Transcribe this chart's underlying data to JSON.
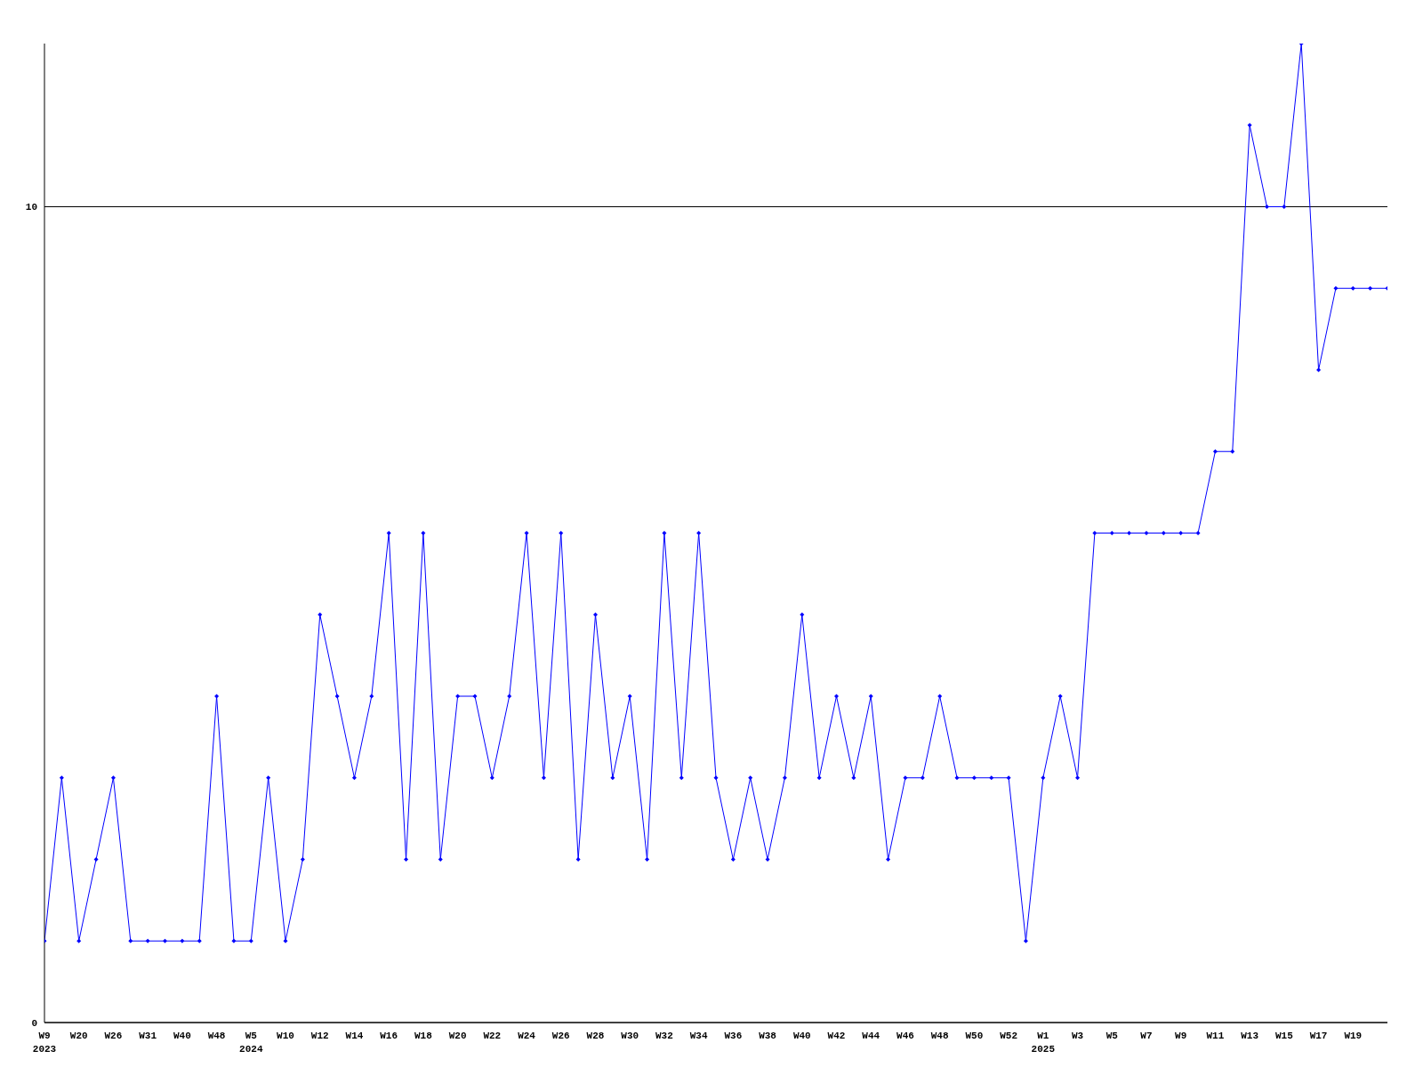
{
  "chart_data": {
    "type": "line",
    "categories": [
      "W9\n2023",
      null,
      "W20",
      null,
      "W26",
      null,
      "W31",
      null,
      "W40",
      null,
      "W48",
      null,
      "W5\n2024",
      null,
      "W10",
      null,
      "W12",
      null,
      "W14",
      null,
      "W16",
      null,
      "W18",
      null,
      "W20",
      null,
      "W22",
      null,
      "W24",
      null,
      "W26",
      null,
      "W28",
      null,
      "W30",
      null,
      "W32",
      null,
      "W34",
      null,
      "W36",
      null,
      "W38",
      null,
      "W40",
      null,
      "W42",
      null,
      "W44",
      null,
      "W46",
      null,
      "W48",
      null,
      "W50",
      null,
      "W52",
      null,
      "W1\n2025",
      null,
      "W3",
      null,
      "W5",
      null,
      "W7",
      null,
      "W9",
      null,
      "W11",
      null,
      "W13",
      null,
      "W15",
      null,
      "W17",
      null,
      "W19",
      null,
      null
    ],
    "series": [
      {
        "color": "#0000ff",
        "values": [
          1,
          3,
          1,
          2,
          3,
          1,
          1,
          1,
          1,
          1,
          4,
          1,
          1,
          3,
          1,
          2,
          5,
          4,
          3,
          4,
          6,
          2,
          6,
          2,
          4,
          4,
          3,
          4,
          6,
          3,
          6,
          2,
          5,
          3,
          4,
          2,
          6,
          3,
          6,
          3,
          2,
          3,
          2,
          3,
          5,
          3,
          4,
          3,
          4,
          2,
          3,
          3,
          4,
          3,
          3,
          3,
          3,
          1,
          3,
          4,
          3,
          6,
          6,
          6,
          6,
          6,
          6,
          6,
          7,
          7,
          11,
          10,
          10,
          12,
          8,
          9,
          9,
          9,
          9
        ]
      }
    ],
    "ylim": [
      0,
      12
    ],
    "yticks": [
      0,
      10
    ],
    "grid": "y",
    "marker": "diamond",
    "line_style": "solid",
    "legend": false
  }
}
